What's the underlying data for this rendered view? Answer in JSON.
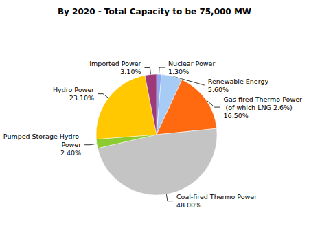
{
  "chart_data": {
    "type": "pie",
    "title": "By 2020 - Total Capacity to be 75,000 MW",
    "categories": [
      "Nuclear Power",
      "Renewable Energy",
      "Gas-fired Thermo Power (of which LNG 2.6%)",
      "Coal-fired Thermo Power",
      "Pumped Storage Hydro Power",
      "Hydro Power",
      "Imported Power"
    ],
    "values": [
      1.3,
      5.6,
      16.5,
      48.0,
      2.4,
      23.1,
      3.1
    ],
    "value_labels": [
      "1.30%",
      "5.60%",
      "16.50%",
      "48.00%",
      "2.40%",
      "23.10%",
      "3.10%"
    ],
    "colors": [
      "#8fa8f0",
      "#a6ccf5",
      "#ff6a10",
      "#c4c4c4",
      "#8ccc30",
      "#ffc800",
      "#9c3a7a"
    ],
    "data_labels": true
  }
}
